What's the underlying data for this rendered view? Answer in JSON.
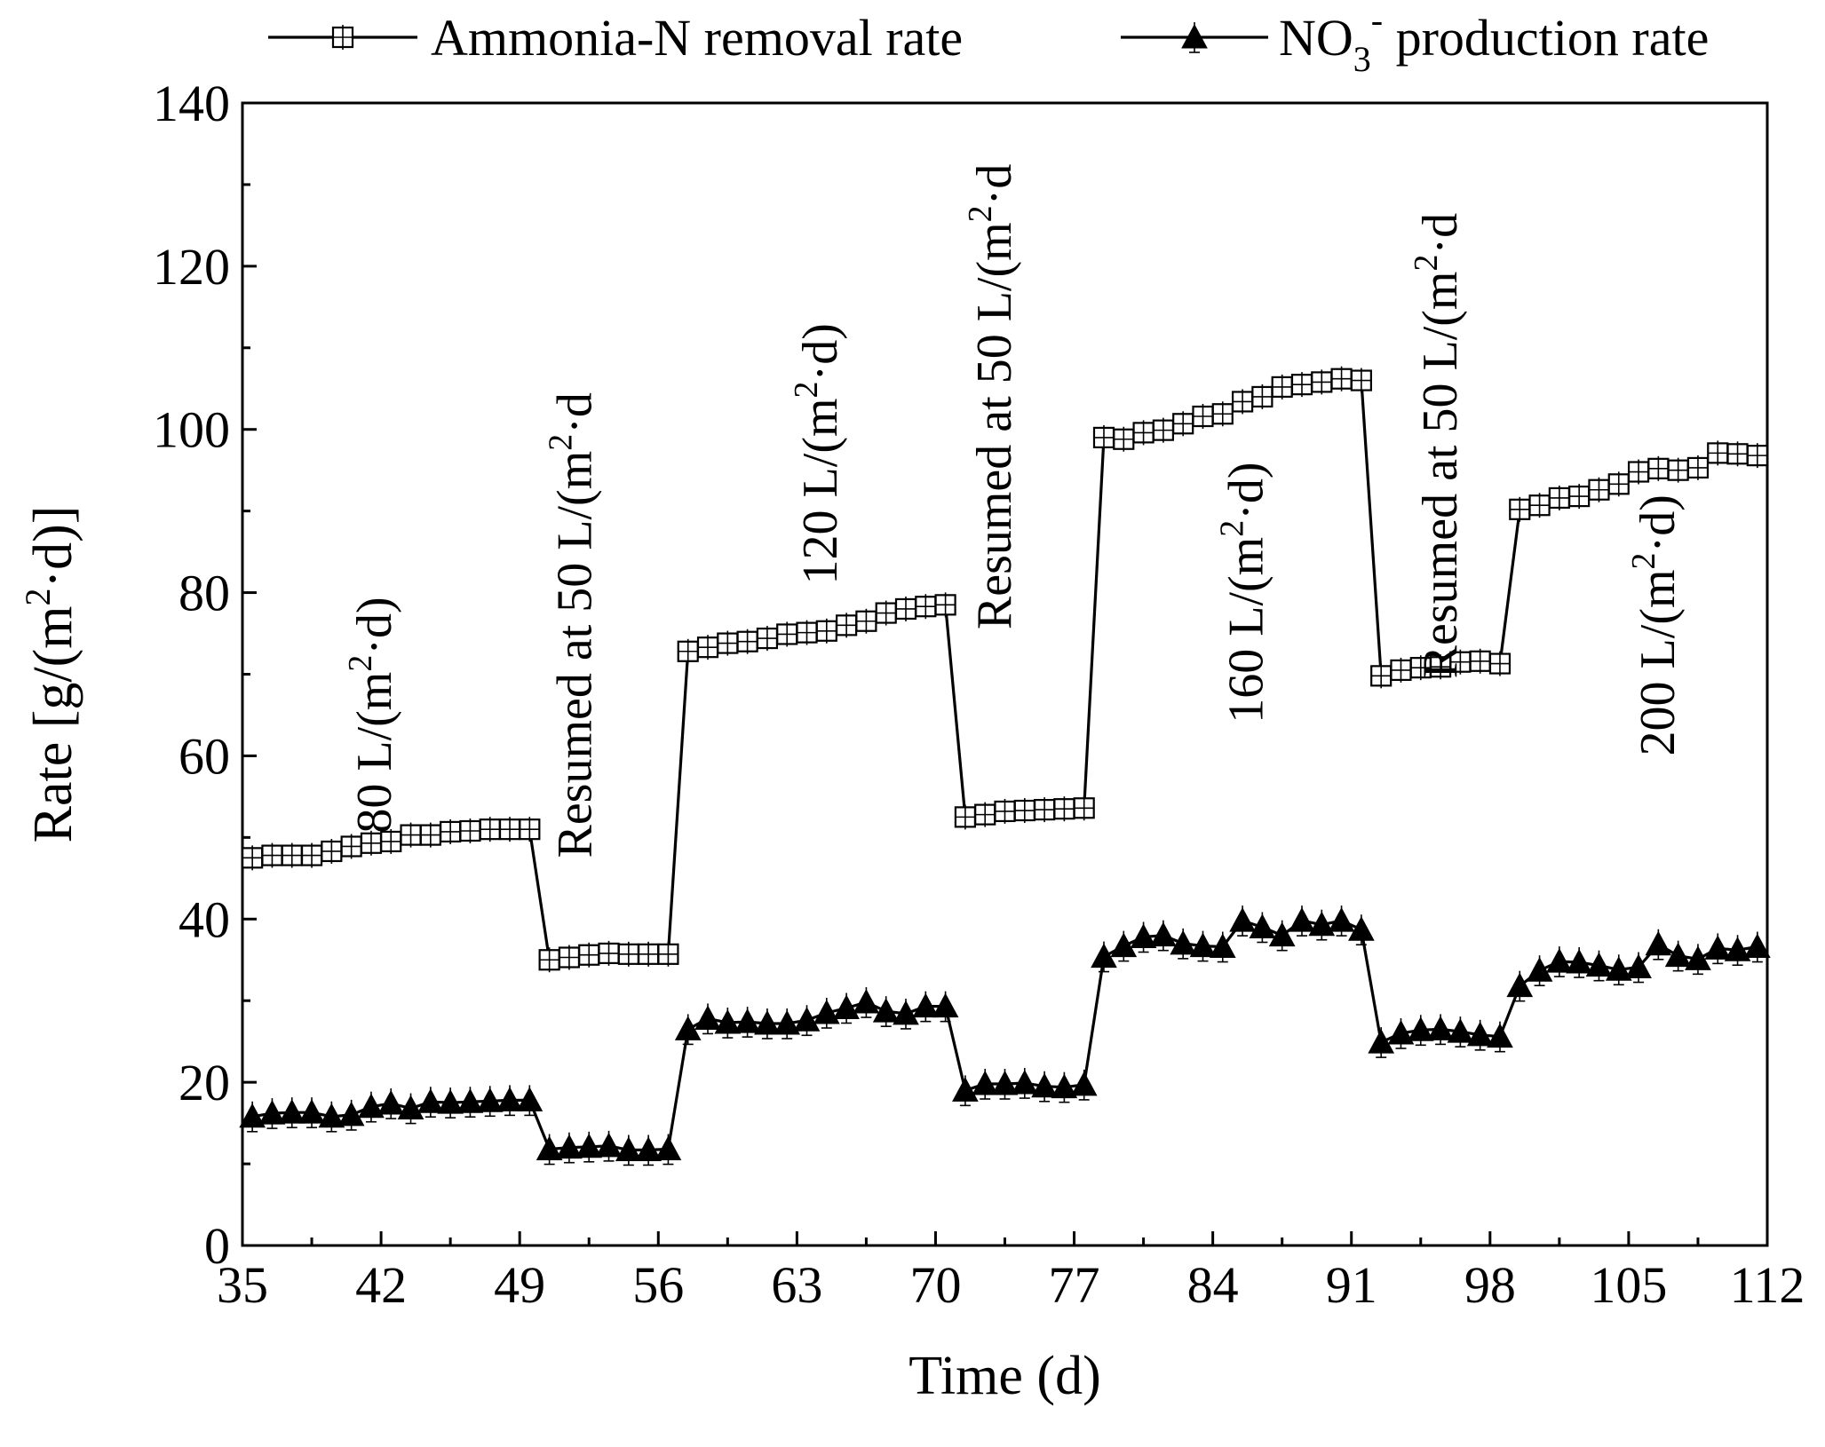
{
  "chart_data": {
    "type": "line",
    "xlabel": "Time (d)",
    "ylabel_parts": {
      "pre": "Rate [g/(m",
      "sup": "2",
      "post": "·d)]"
    },
    "xlim": [
      35,
      112
    ],
    "ylim": [
      0,
      140
    ],
    "xticks": [
      35,
      42,
      49,
      56,
      63,
      70,
      77,
      84,
      91,
      98,
      105,
      112
    ],
    "yticks": [
      0,
      20,
      40,
      60,
      80,
      100,
      120,
      140
    ],
    "legend": {
      "placement": "top",
      "items": [
        {
          "series": "ammonia",
          "label": "Ammonia-N removal rate",
          "marker": "open-square"
        },
        {
          "series": "nitrate",
          "label_pre": "NO",
          "label_sub": "3",
          "label_sup": "-",
          "label_post": " production rate",
          "marker": "filled-triangle"
        }
      ]
    },
    "annotations": [
      {
        "x": 42.5,
        "y": 65,
        "pre": "80 L/(m",
        "sup": "2",
        "post": "·d)"
      },
      {
        "x": 52.6,
        "y": 76,
        "pre": "Resumed at 50 L/(m",
        "sup": "2",
        "post": "·d"
      },
      {
        "x": 65.0,
        "y": 97,
        "pre": "120 L/(m",
        "sup": "2",
        "post": "·d)"
      },
      {
        "x": 73.8,
        "y": 104,
        "pre": "Resumed at 50 L/(m",
        "sup": "2",
        "post": "·d"
      },
      {
        "x": 86.5,
        "y": 80,
        "pre": "160 L/(m",
        "sup": "2",
        "post": "·d)"
      },
      {
        "x": 96.3,
        "y": 98,
        "pre": "Resumed at 50 L/(m",
        "sup": "2",
        "post": "·d"
      },
      {
        "x": 107.3,
        "y": 76,
        "pre": "200 L/(m",
        "sup": "2",
        "post": "·d)"
      }
    ],
    "series": [
      {
        "name": "Ammonia-N removal rate",
        "key": "ammonia",
        "marker": "open-square",
        "x": [
          35.5,
          36.5,
          37.5,
          38.5,
          39.5,
          40.5,
          41.5,
          42.5,
          43.5,
          44.5,
          45.5,
          46.5,
          47.5,
          48.5,
          49.5,
          50.5,
          51.5,
          52.5,
          53.5,
          54.5,
          55.5,
          56.5,
          57.5,
          58.5,
          59.5,
          60.5,
          61.5,
          62.5,
          63.5,
          64.5,
          65.5,
          66.5,
          67.5,
          68.5,
          69.5,
          70.5,
          71.5,
          72.5,
          73.5,
          74.5,
          75.5,
          76.5,
          77.5,
          78.5,
          79.5,
          80.5,
          81.5,
          82.5,
          83.5,
          84.5,
          85.5,
          86.5,
          87.5,
          88.5,
          89.5,
          90.5,
          91.5,
          92.5,
          93.5,
          94.5,
          95.5,
          96.5,
          97.5,
          98.5,
          99.5,
          100.5,
          101.5,
          102.5,
          103.5,
          104.5,
          105.5,
          106.5,
          107.5,
          108.5,
          109.5,
          110.5,
          111.5
        ],
        "y": [
          47.5,
          47.8,
          47.8,
          47.8,
          48.3,
          48.9,
          49.3,
          49.5,
          50.3,
          50.3,
          50.7,
          50.8,
          51.0,
          51.0,
          51.0,
          35.0,
          35.3,
          35.6,
          35.8,
          35.7,
          35.7,
          35.7,
          72.8,
          73.3,
          73.8,
          74.0,
          74.4,
          74.9,
          75.1,
          75.3,
          76.0,
          76.5,
          77.5,
          78.0,
          78.3,
          78.5,
          52.5,
          52.8,
          53.2,
          53.3,
          53.4,
          53.5,
          53.6,
          99.0,
          98.8,
          99.6,
          99.9,
          100.7,
          101.6,
          101.9,
          103.4,
          104.0,
          105.2,
          105.5,
          105.8,
          106.2,
          106.0,
          69.8,
          70.5,
          70.8,
          70.9,
          71.5,
          71.6,
          71.3,
          90.2,
          90.7,
          91.6,
          91.8,
          92.6,
          93.3,
          94.8,
          95.2,
          95.0,
          95.3,
          97.1,
          97.0,
          96.8
        ]
      },
      {
        "name": "NO3- production rate",
        "key": "nitrate",
        "marker": "filled-triangle",
        "x": [
          35.5,
          36.5,
          37.5,
          38.5,
          39.5,
          40.5,
          41.5,
          42.5,
          43.5,
          44.5,
          45.5,
          46.5,
          47.5,
          48.5,
          49.5,
          50.5,
          51.5,
          52.5,
          53.5,
          54.5,
          55.5,
          56.5,
          57.5,
          58.5,
          59.5,
          60.5,
          61.5,
          62.5,
          63.5,
          64.5,
          65.5,
          66.5,
          67.5,
          68.5,
          69.5,
          70.5,
          71.5,
          72.5,
          73.5,
          74.5,
          75.5,
          76.5,
          77.5,
          78.5,
          79.5,
          80.5,
          81.5,
          82.5,
          83.5,
          84.5,
          85.5,
          86.5,
          87.5,
          88.5,
          89.5,
          90.5,
          91.5,
          92.5,
          93.5,
          94.5,
          95.5,
          96.5,
          97.5,
          98.5,
          99.5,
          100.5,
          101.5,
          102.5,
          103.5,
          104.5,
          105.5,
          106.5,
          107.5,
          108.5,
          109.5,
          110.5,
          111.5
        ],
        "y": [
          15.8,
          16.2,
          16.3,
          16.3,
          15.8,
          16.0,
          17.0,
          17.4,
          16.8,
          17.6,
          17.5,
          17.6,
          17.7,
          17.8,
          17.8,
          11.8,
          12.0,
          12.1,
          12.2,
          11.7,
          11.7,
          11.8,
          26.5,
          27.8,
          27.3,
          27.4,
          27.2,
          27.2,
          27.6,
          28.5,
          29.1,
          29.8,
          28.7,
          28.4,
          29.3,
          29.3,
          19.0,
          19.8,
          19.8,
          19.9,
          19.5,
          19.4,
          19.7,
          35.4,
          36.7,
          37.8,
          38.0,
          37.0,
          36.7,
          36.6,
          39.8,
          39.0,
          38.0,
          39.8,
          39.3,
          39.8,
          38.7,
          24.9,
          26.0,
          26.4,
          26.5,
          26.2,
          25.8,
          25.6,
          31.8,
          33.7,
          34.8,
          34.7,
          34.3,
          33.8,
          34.1,
          36.9,
          35.5,
          35.1,
          36.4,
          36.2,
          36.6
        ]
      }
    ]
  }
}
